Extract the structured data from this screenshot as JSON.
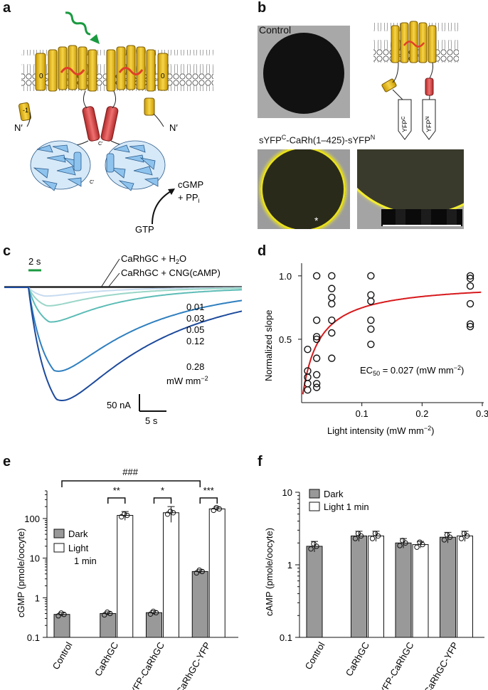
{
  "panels": {
    "a": {
      "letter": "a",
      "helix0": "0",
      "helix1": "-1",
      "nterm_left": "N′",
      "nterm_right": "N′",
      "cterm_1": "C′",
      "cterm_2": "C′",
      "product_1": "cGMP",
      "product_2": "+ PP",
      "product_sub": "i",
      "substrate": "GTP"
    },
    "b": {
      "letter": "b",
      "control_label": "Control",
      "construct_prefix": "sYFP",
      "construct_sup1": "C",
      "construct_mid": "-CaRh(1–425)-sYFP",
      "construct_sup2": "N",
      "yfp_c": "YFP",
      "yfp_c_sup": "C",
      "yfp_n": "YFP",
      "yfp_n_sup": "N",
      "asterisk": "*"
    },
    "c": {
      "letter": "c",
      "time_bar": "2 s",
      "legend_h2o": "CaRhGC + H",
      "legend_h2o_sub": "2",
      "legend_h2o_end": "O",
      "legend_cng": "CaRhGC + CNG(cAMP)",
      "intensities": [
        "0.01",
        "0.03",
        "0.05",
        "0.12",
        "0.28"
      ],
      "unit": "mW mm",
      "unit_sup": "−2",
      "scale_y": "50 nA",
      "scale_x": "5 s"
    },
    "d": {
      "letter": "d",
      "ylabel": "Normalized slope",
      "xlabel": "Light intensity (mW mm",
      "xlabel_sup": "−2",
      "xlabel_end": ")",
      "ec50": "EC",
      "ec50_sub": "50",
      "ec50_value": " = 0.027 (mW mm",
      "ec50_sup": "−2",
      "ec50_end": ")",
      "xticks": [
        "0.1",
        "0.2",
        "0.3"
      ],
      "yticks": [
        "0.5",
        "1.0"
      ]
    },
    "e": {
      "letter": "e",
      "ylabel": "cGMP (pmole/oocyte)",
      "sig_overall": "###",
      "sig_pairs": [
        "**",
        "*",
        "***"
      ],
      "legend_dark": "Dark",
      "legend_light_1": "Light",
      "legend_light_2": "1 min",
      "yticks": [
        "0.1",
        "1",
        "10",
        "100"
      ]
    },
    "f": {
      "letter": "f",
      "ylabel": "cAMP (pmole/oocyte)",
      "legend_dark": "Dark",
      "legend_light": "Light 1 min",
      "yticks": [
        "0.1",
        "1",
        "10"
      ]
    }
  },
  "chart_data": [
    {
      "panel": "c",
      "type": "line",
      "x_unit": "s",
      "y_unit": "nA",
      "series": [
        {
          "name": "CaRhGC + H2O",
          "peak_nA": 0,
          "color": "#222222"
        },
        {
          "name": "CaRhGC + CNG(cAMP)",
          "peak_nA": 0,
          "color": "#222222"
        },
        {
          "name": "0.01",
          "peak_nA": -15,
          "color": "#c6dbef"
        },
        {
          "name": "0.03",
          "peak_nA": -32,
          "color": "#9ad6c8"
        },
        {
          "name": "0.05",
          "peak_nA": -60,
          "color": "#5cbcb6"
        },
        {
          "name": "0.12",
          "peak_nA": -145,
          "color": "#2f7fbf"
        },
        {
          "name": "0.28",
          "peak_nA": -195,
          "color": "#1d4a9c"
        }
      ]
    },
    {
      "panel": "d",
      "type": "scatter",
      "xlabel": "Light intensity (mW mm−2)",
      "ylabel": "Normalized slope",
      "xlim": [
        0,
        0.3
      ],
      "ylim": [
        0,
        1.1
      ],
      "points": [
        [
          0.01,
          0.42
        ],
        [
          0.01,
          0.25
        ],
        [
          0.01,
          0.2
        ],
        [
          0.01,
          0.15
        ],
        [
          0.01,
          0.1
        ],
        [
          0.025,
          1.0
        ],
        [
          0.025,
          0.65
        ],
        [
          0.025,
          0.52
        ],
        [
          0.025,
          0.5
        ],
        [
          0.025,
          0.35
        ],
        [
          0.025,
          0.22
        ],
        [
          0.025,
          0.15
        ],
        [
          0.025,
          0.12
        ],
        [
          0.05,
          1.0
        ],
        [
          0.05,
          0.9
        ],
        [
          0.05,
          0.83
        ],
        [
          0.05,
          0.78
        ],
        [
          0.05,
          0.65
        ],
        [
          0.05,
          0.55
        ],
        [
          0.05,
          0.35
        ],
        [
          0.115,
          1.0
        ],
        [
          0.115,
          0.85
        ],
        [
          0.115,
          0.8
        ],
        [
          0.115,
          0.65
        ],
        [
          0.115,
          0.58
        ],
        [
          0.115,
          0.46
        ],
        [
          0.28,
          1.0
        ],
        [
          0.28,
          0.98
        ],
        [
          0.28,
          0.92
        ],
        [
          0.28,
          0.78
        ],
        [
          0.28,
          0.62
        ],
        [
          0.28,
          0.6
        ]
      ],
      "fit_ec50": 0.027,
      "fit_max": 0.95,
      "fit_color": "#d7191c"
    },
    {
      "panel": "e",
      "type": "bar",
      "log_scale": true,
      "ylabel": "cGMP (pmole/oocyte)",
      "ylim": [
        0.1,
        500
      ],
      "categories": [
        "Control",
        "CaRhGC",
        "YFP-CaRhGC",
        "CaRhGC-YFP"
      ],
      "series": [
        {
          "name": "Dark",
          "values": [
            0.38,
            0.4,
            0.42,
            4.6
          ],
          "errors": [
            0.04,
            0.04,
            0.05,
            0.5
          ],
          "color": "#999999"
        },
        {
          "name": "Light 1 min",
          "values": [
            null,
            120,
            140,
            175
          ],
          "errors": [
            null,
            30,
            60,
            20
          ],
          "color": "#ffffff"
        }
      ]
    },
    {
      "panel": "f",
      "type": "bar",
      "log_scale": true,
      "ylabel": "cAMP (pmole/oocyte)",
      "ylim": [
        0.1,
        10
      ],
      "categories": [
        "Control",
        "CaRhGC",
        "YFP-CaRhGC",
        "CaRhGC-YFP"
      ],
      "series": [
        {
          "name": "Dark",
          "values": [
            1.8,
            2.5,
            2.0,
            2.4
          ],
          "errors": [
            0.3,
            0.4,
            0.3,
            0.4
          ],
          "color": "#999999"
        },
        {
          "name": "Light 1 min",
          "values": [
            null,
            2.5,
            1.9,
            2.5
          ],
          "errors": [
            null,
            0.4,
            0.2,
            0.4
          ],
          "color": "#ffffff"
        }
      ]
    }
  ]
}
